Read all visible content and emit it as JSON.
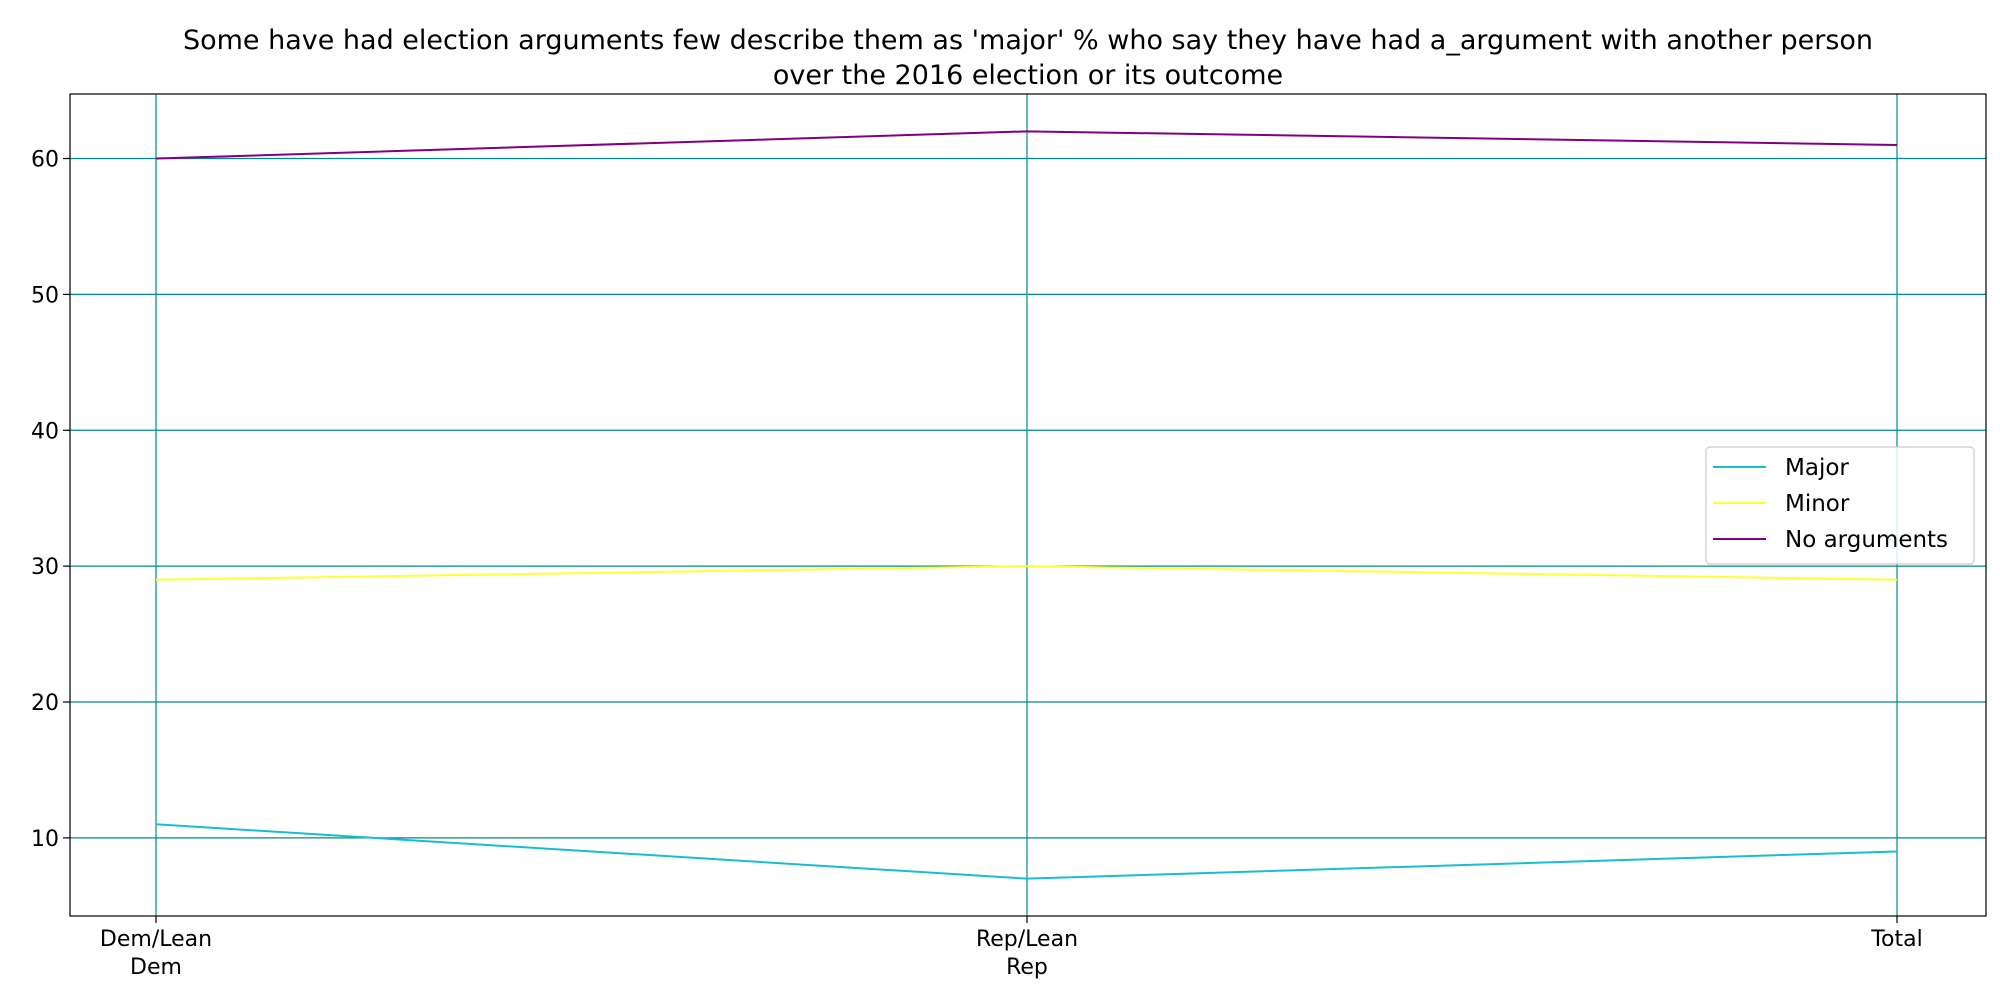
{
  "chart_data": {
    "type": "line",
    "title": [
      "Some have had election arguments few describe them as 'major' % who say they have had a_argument with another person",
      "over the 2016 election or its outcome"
    ],
    "categories": [
      [
        "Dem/Lean",
        "Dem"
      ],
      [
        "Rep/Lean",
        "Rep"
      ],
      [
        "Total"
      ]
    ],
    "series": [
      {
        "name": "Major",
        "values": [
          11,
          7,
          9
        ],
        "color": "#17becf"
      },
      {
        "name": "Minor",
        "values": [
          29,
          30,
          29
        ],
        "color": "#ffff33"
      },
      {
        "name": "No arguments",
        "values": [
          60,
          62,
          61
        ],
        "color": "#800080"
      }
    ],
    "ylim": [
      4.25,
      64.75
    ],
    "yticks": [
      10,
      20,
      30,
      40,
      50,
      60
    ],
    "grid": true,
    "grid_color": "#008b8b",
    "legend_position": "center-right"
  }
}
